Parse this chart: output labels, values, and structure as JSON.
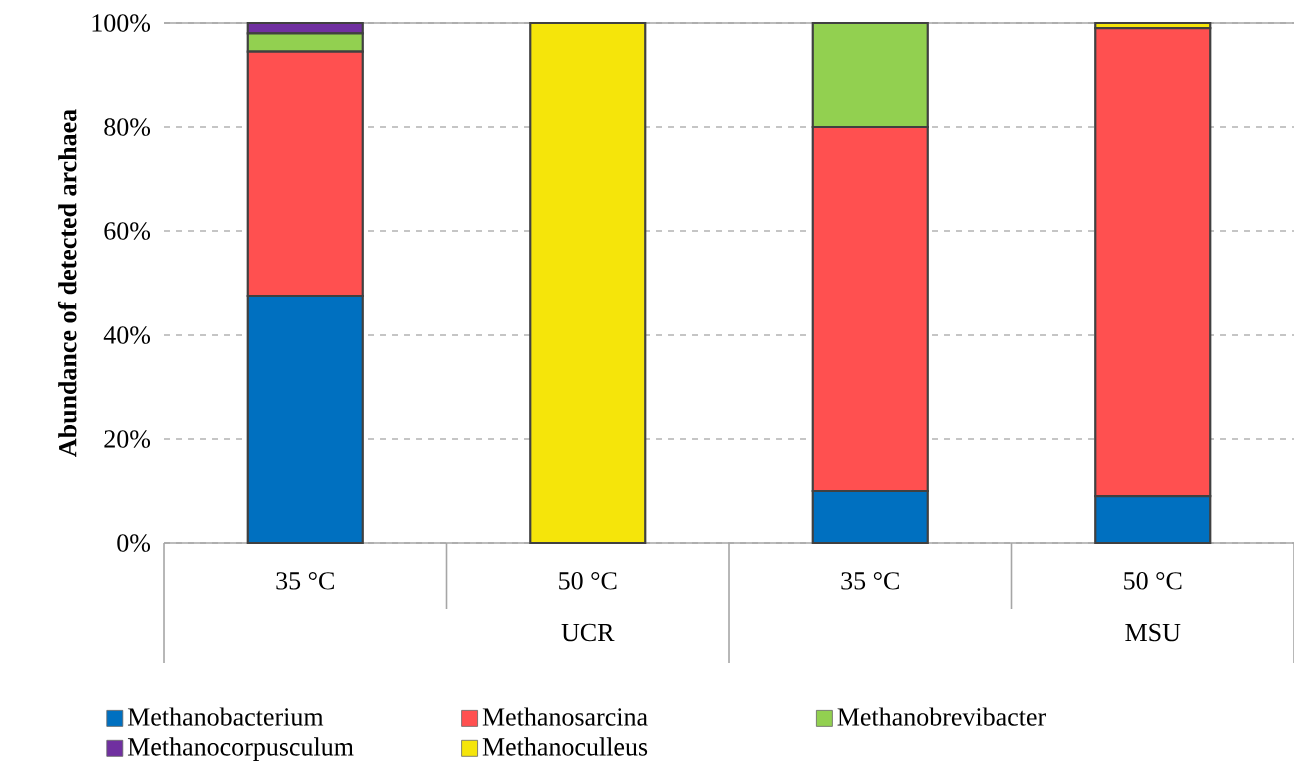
{
  "chart_data": {
    "type": "bar",
    "stacked": true,
    "ylabel": "Abundance of detected archaea",
    "categories": [
      "35 °C",
      "50 °C",
      "35 °C",
      "50 °C"
    ],
    "annotations": [
      "UCR",
      "MSU"
    ],
    "series": [
      {
        "name": "Methanobacterium",
        "color": "#0070c0",
        "values": [
          47.5,
          null,
          10,
          9
        ]
      },
      {
        "name": "Methanosarcina",
        "color": "#ff5050",
        "values": [
          47,
          null,
          70,
          90
        ]
      },
      {
        "name": "Methanobrevibacter",
        "color": "#92d050",
        "values": [
          3.5,
          null,
          20,
          null
        ]
      },
      {
        "name": "Methanocorpusculum",
        "color": "#7030a0",
        "values": [
          2,
          null,
          null,
          null
        ]
      },
      {
        "name": "Methanoculleus",
        "color": "#f5e50a",
        "values": [
          null,
          100,
          null,
          1
        ]
      }
    ],
    "ylim": [
      0,
      100
    ],
    "yticks": [
      {
        "value": 0,
        "label": "0%"
      },
      {
        "value": 20,
        "label": "20%"
      },
      {
        "value": 40,
        "label": "40%"
      },
      {
        "value": 60,
        "label": "60%"
      },
      {
        "value": 80,
        "label": "80%"
      },
      {
        "value": 100,
        "label": "100%"
      }
    ],
    "grid": "y",
    "legend": "bottom"
  }
}
